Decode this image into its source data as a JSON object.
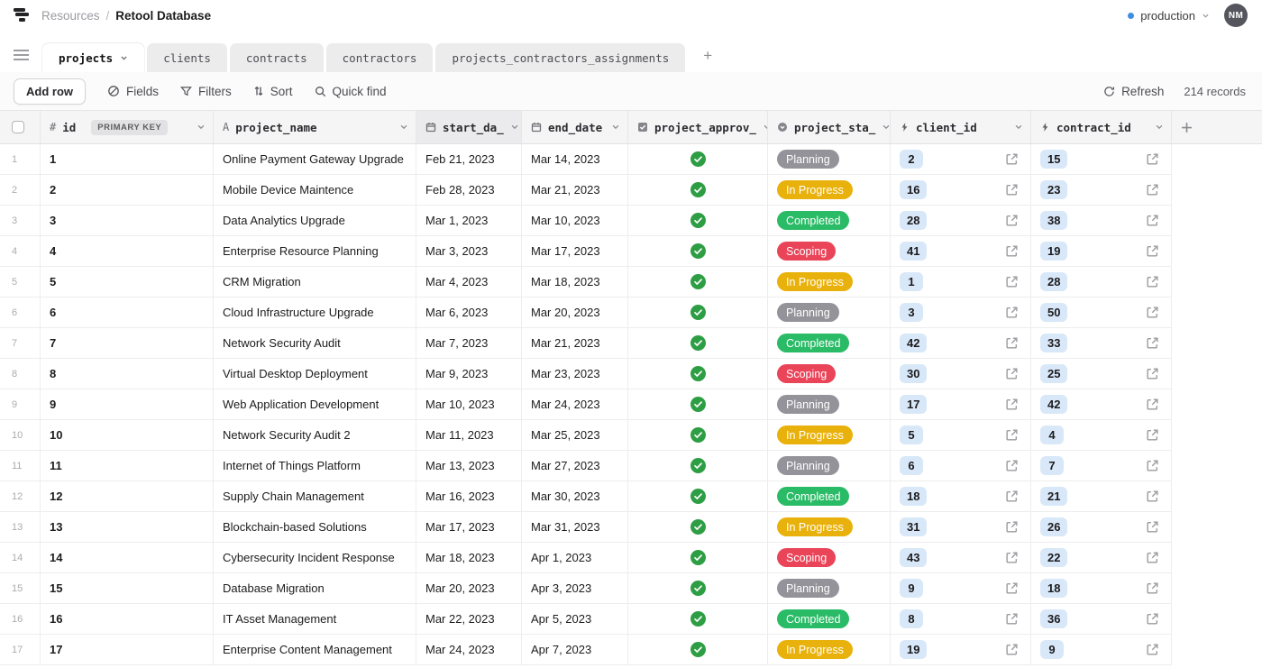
{
  "header": {
    "breadcrumb": {
      "section": "Resources",
      "separator": "/",
      "title": "Retool Database"
    },
    "environment": {
      "label": "production",
      "dot_color": "#3d8ee0"
    },
    "avatar_initials": "NM"
  },
  "tabs": {
    "items": [
      {
        "label": "projects",
        "active": true
      },
      {
        "label": "clients",
        "active": false
      },
      {
        "label": "contracts",
        "active": false
      },
      {
        "label": "contractors",
        "active": false
      },
      {
        "label": "projects_contractors_assignments",
        "active": false
      }
    ],
    "add_label": "+"
  },
  "toolbar": {
    "add_row_label": "Add row",
    "fields_label": "Fields",
    "filters_label": "Filters",
    "sort_label": "Sort",
    "quick_find_label": "Quick find",
    "refresh_label": "Refresh",
    "records_label": "214 records"
  },
  "table": {
    "primary_key_badge": "PRIMARY KEY",
    "columns": [
      {
        "label": "id",
        "type": "number"
      },
      {
        "label": "project_name",
        "type": "text"
      },
      {
        "label": "start_da_",
        "type": "date"
      },
      {
        "label": "end_date",
        "type": "date"
      },
      {
        "label": "project_approv_",
        "type": "checkbox"
      },
      {
        "label": "project_sta_",
        "type": "select"
      },
      {
        "label": "client_id",
        "type": "foreign-key"
      },
      {
        "label": "contract_id",
        "type": "foreign-key"
      }
    ],
    "status_colors": {
      "Planning": "#939399",
      "In Progress": "#e9b10b",
      "Completed": "#2abb67",
      "Scoping": "#ea4459"
    },
    "approval_color": "#2e9e44",
    "rows": [
      {
        "id": "1",
        "project_name": "Online Payment Gateway Upgrade",
        "start_date": "Feb 21, 2023",
        "end_date": "Mar 14, 2023",
        "project_approval": true,
        "project_status": "Planning",
        "client_id": "2",
        "contract_id": "15"
      },
      {
        "id": "2",
        "project_name": "Mobile Device Maintence",
        "start_date": "Feb 28, 2023",
        "end_date": "Mar 21, 2023",
        "project_approval": true,
        "project_status": "In Progress",
        "client_id": "16",
        "contract_id": "23"
      },
      {
        "id": "3",
        "project_name": "Data Analytics Upgrade",
        "start_date": "Mar 1, 2023",
        "end_date": "Mar 10, 2023",
        "project_approval": true,
        "project_status": "Completed",
        "client_id": "28",
        "contract_id": "38"
      },
      {
        "id": "4",
        "project_name": "Enterprise Resource Planning",
        "start_date": "Mar 3, 2023",
        "end_date": "Mar 17, 2023",
        "project_approval": true,
        "project_status": "Scoping",
        "client_id": "41",
        "contract_id": "19"
      },
      {
        "id": "5",
        "project_name": "CRM Migration",
        "start_date": "Mar 4, 2023",
        "end_date": "Mar 18, 2023",
        "project_approval": true,
        "project_status": "In Progress",
        "client_id": "1",
        "contract_id": "28"
      },
      {
        "id": "6",
        "project_name": "Cloud Infrastructure Upgrade",
        "start_date": "Mar 6, 2023",
        "end_date": "Mar 20, 2023",
        "project_approval": true,
        "project_status": "Planning",
        "client_id": "3",
        "contract_id": "50"
      },
      {
        "id": "7",
        "project_name": "Network Security Audit",
        "start_date": "Mar 7, 2023",
        "end_date": "Mar 21, 2023",
        "project_approval": true,
        "project_status": "Completed",
        "client_id": "42",
        "contract_id": "33"
      },
      {
        "id": "8",
        "project_name": "Virtual Desktop Deployment",
        "start_date": "Mar 9, 2023",
        "end_date": "Mar 23, 2023",
        "project_approval": true,
        "project_status": "Scoping",
        "client_id": "30",
        "contract_id": "25"
      },
      {
        "id": "9",
        "project_name": "Web Application Development",
        "start_date": "Mar 10, 2023",
        "end_date": "Mar 24, 2023",
        "project_approval": true,
        "project_status": "Planning",
        "client_id": "17",
        "contract_id": "42"
      },
      {
        "id": "10",
        "project_name": "Network Security Audit 2",
        "start_date": "Mar 11, 2023",
        "end_date": "Mar 25, 2023",
        "project_approval": true,
        "project_status": "In Progress",
        "client_id": "5",
        "contract_id": "4"
      },
      {
        "id": "11",
        "project_name": "Internet of Things Platform",
        "start_date": "Mar 13, 2023",
        "end_date": "Mar 27, 2023",
        "project_approval": true,
        "project_status": "Planning",
        "client_id": "6",
        "contract_id": "7"
      },
      {
        "id": "12",
        "project_name": "Supply Chain Management",
        "start_date": "Mar 16, 2023",
        "end_date": "Mar 30, 2023",
        "project_approval": true,
        "project_status": "Completed",
        "client_id": "18",
        "contract_id": "21"
      },
      {
        "id": "13",
        "project_name": "Blockchain-based Solutions",
        "start_date": "Mar 17, 2023",
        "end_date": "Mar 31, 2023",
        "project_approval": true,
        "project_status": "In Progress",
        "client_id": "31",
        "contract_id": "26"
      },
      {
        "id": "14",
        "project_name": "Cybersecurity Incident Response",
        "start_date": "Mar 18, 2023",
        "end_date": "Apr 1, 2023",
        "project_approval": true,
        "project_status": "Scoping",
        "client_id": "43",
        "contract_id": "22"
      },
      {
        "id": "15",
        "project_name": "Database Migration",
        "start_date": "Mar 20, 2023",
        "end_date": "Apr 3, 2023",
        "project_approval": true,
        "project_status": "Planning",
        "client_id": "9",
        "contract_id": "18"
      },
      {
        "id": "16",
        "project_name": "IT Asset Management",
        "start_date": "Mar 22, 2023",
        "end_date": "Apr 5, 2023",
        "project_approval": true,
        "project_status": "Completed",
        "client_id": "8",
        "contract_id": "36"
      },
      {
        "id": "17",
        "project_name": "Enterprise Content Management",
        "start_date": "Mar 24, 2023",
        "end_date": "Apr 7, 2023",
        "project_approval": true,
        "project_status": "In Progress",
        "client_id": "19",
        "contract_id": "9"
      }
    ]
  }
}
